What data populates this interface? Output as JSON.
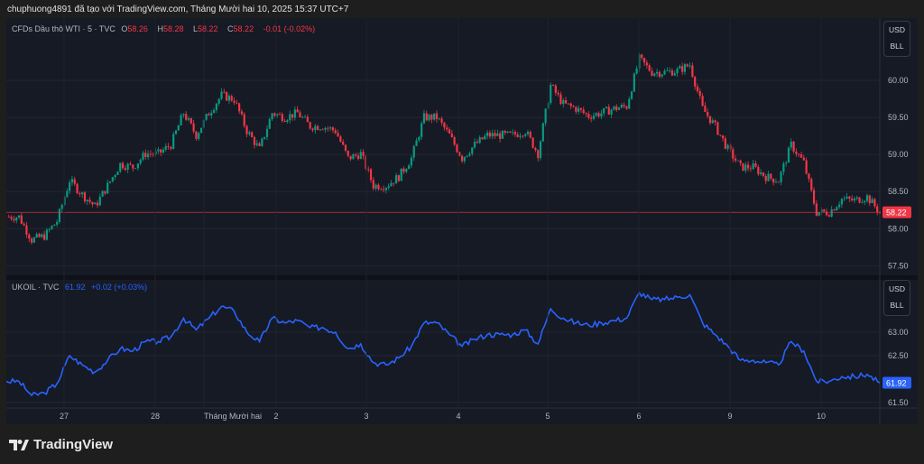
{
  "header": {
    "attribution": "chuphuong4891 đã tạo với TradingView.com, Tháng Mười hai 10, 2025 15:37 UTC+7"
  },
  "top_pane": {
    "symbol": "CFDs Dầu thô WTI · 5 · TVC",
    "o_label": "O",
    "o": "58.26",
    "h_label": "H",
    "h": "58.28",
    "l_label": "L",
    "l": "58.22",
    "c_label": "C",
    "c": "58.22",
    "change": "-0.01 (-0.02%)",
    "currency": "USD",
    "unit": "BLL",
    "last_price": "58.22"
  },
  "bottom_pane": {
    "symbol": "UKOIL · TVC",
    "last": "61.92",
    "change": "+0.02 (+0.03%)",
    "currency": "USD",
    "unit": "BLL",
    "last_price": "61.92"
  },
  "footer": {
    "brand": "TradingView"
  },
  "colors": {
    "up": "#089981",
    "down": "#f23645",
    "line": "#2962ff",
    "bg": "#161a25"
  },
  "chart_data": [
    {
      "type": "candlestick",
      "name": "CFDs Dầu thô WTI",
      "ylim": [
        57.37,
        60.84
      ],
      "yticks": [
        "60.00",
        "59.50",
        "59.00",
        "58.50",
        "58.00",
        "57.50"
      ],
      "values": [
        58.16,
        58.16,
        57.85,
        57.9,
        58.1,
        58.65,
        58.46,
        58.3,
        58.58,
        58.87,
        58.83,
        59.01,
        59.01,
        59.13,
        59.56,
        59.26,
        59.56,
        59.8,
        59.74,
        59.32,
        59.07,
        59.56,
        59.5,
        59.56,
        59.38,
        59.38,
        59.32,
        58.95,
        59.01,
        58.58,
        58.58,
        58.7,
        58.95,
        59.5,
        59.5,
        59.26,
        58.95,
        59.13,
        59.26,
        59.26,
        59.26,
        59.32,
        59.01,
        59.93,
        59.68,
        59.62,
        59.52,
        59.56,
        59.62,
        59.65,
        60.29,
        60.11,
        60.11,
        60.13,
        60.21,
        59.62,
        59.38,
        59.07,
        58.83,
        58.83,
        58.7,
        58.65,
        59.13,
        58.89,
        58.22,
        58.22,
        58.4,
        58.38,
        58.43,
        58.22
      ]
    },
    {
      "type": "line",
      "name": "UKOIL",
      "ylim": [
        61.38,
        64.12
      ],
      "yticks": [
        "63.00",
        "62.50",
        "61.50"
      ],
      "values": [
        61.95,
        61.95,
        61.65,
        61.7,
        61.9,
        62.5,
        62.3,
        62.15,
        62.4,
        62.65,
        62.6,
        62.8,
        62.8,
        62.9,
        63.3,
        63.05,
        63.3,
        63.55,
        63.45,
        63.0,
        62.8,
        63.3,
        63.2,
        63.25,
        63.1,
        63.1,
        63.0,
        62.65,
        62.75,
        62.35,
        62.3,
        62.45,
        62.7,
        63.2,
        63.2,
        62.95,
        62.7,
        62.85,
        62.95,
        62.95,
        62.95,
        63.05,
        62.75,
        63.5,
        63.3,
        63.2,
        63.15,
        63.2,
        63.25,
        63.3,
        63.85,
        63.7,
        63.7,
        63.75,
        63.8,
        63.2,
        62.95,
        62.7,
        62.4,
        62.4,
        62.35,
        62.3,
        62.8,
        62.6,
        61.95,
        61.95,
        62.05,
        62.05,
        62.1,
        61.92
      ]
    },
    {
      "type": "x-axis",
      "ticks": [
        "27",
        "28",
        "Tháng Mười hai",
        "2",
        "3",
        "4",
        "5",
        "6",
        "9",
        "10"
      ]
    }
  ]
}
